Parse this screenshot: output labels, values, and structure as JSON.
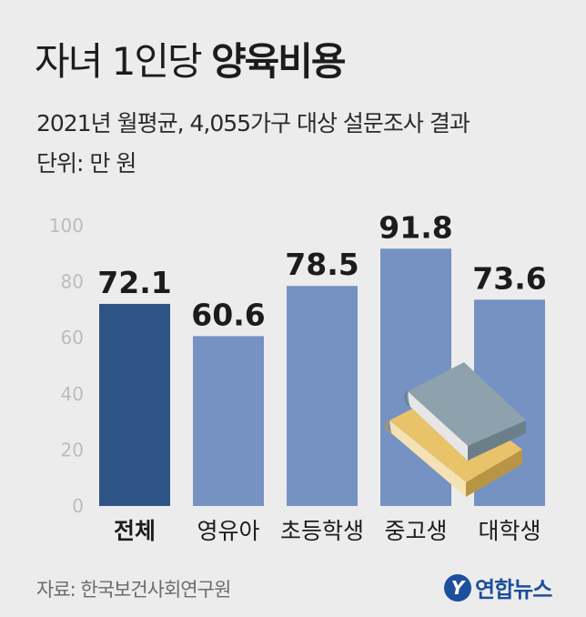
{
  "header": {
    "title_light": "자녀 1인당",
    "title_bold": "양육비용",
    "subtitle": "2021년 월평균, 4,055가구 대상 설문조사 결과",
    "unit": "단위: 만 원"
  },
  "chart_data": {
    "type": "bar",
    "categories": [
      "전체",
      "영유아",
      "초등학생",
      "중고생",
      "대학생"
    ],
    "values": [
      72.1,
      60.6,
      78.5,
      91.8,
      73.6
    ],
    "value_labels": [
      "72.1",
      "60.6",
      "78.5",
      "91.8",
      "73.6"
    ],
    "ylim": [
      0,
      100
    ],
    "yticks": [
      "0",
      "20",
      "40",
      "60",
      "80",
      "100"
    ],
    "ytick_values": [
      0,
      20,
      40,
      60,
      80,
      100
    ],
    "grid": false,
    "colors": {
      "highlight": "#2e5485",
      "bar": "#7592c2",
      "axis_text": "#bcbcbc",
      "label": "#1c1c1c"
    },
    "highlight_index": 0
  },
  "footer": {
    "source": "자료: 한국보건사회연구원",
    "logo_mark": "Y",
    "logo_text": "연합뉴스"
  },
  "decoration": {
    "books_icon": "books-icon"
  }
}
